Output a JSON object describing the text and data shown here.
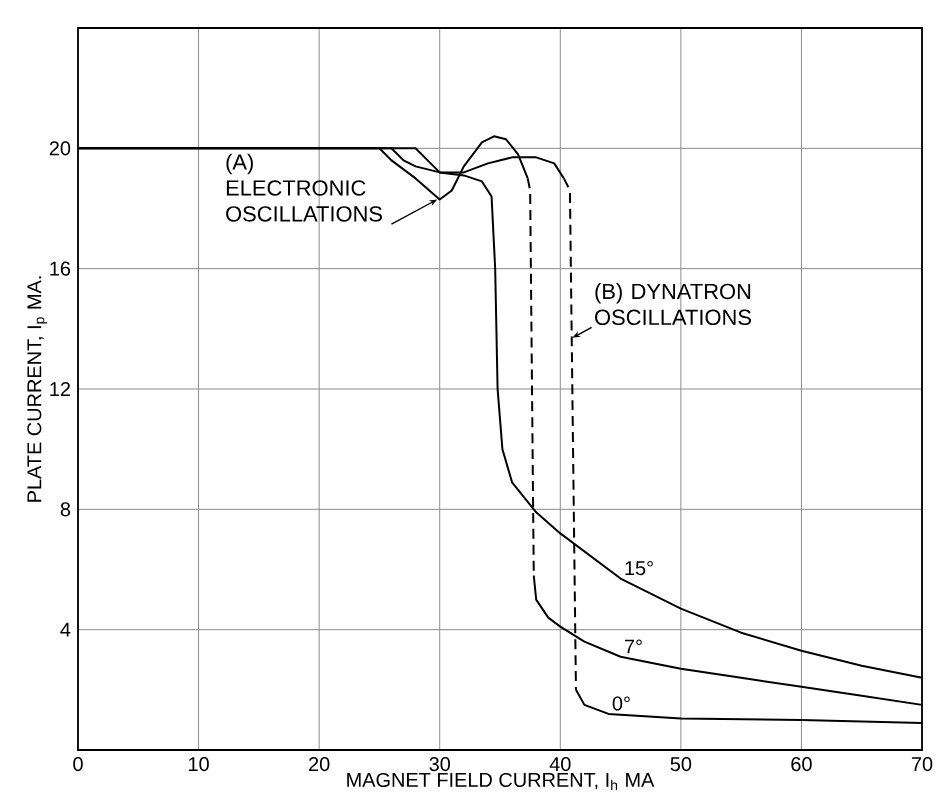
{
  "chart_data": {
    "type": "line",
    "xlabel": "MAGNET FIELD CURRENT, I$_{h}$ MA",
    "ylabel": "PLATE CURRENT, I$_{p}$ MA.",
    "xlim": [
      0,
      70
    ],
    "ylim": [
      0,
      24
    ],
    "xticks": [
      0,
      10,
      20,
      30,
      40,
      50,
      60,
      70
    ],
    "yticks": [
      {
        "value": 0,
        "label": null
      },
      4,
      8,
      12,
      16,
      20,
      {
        "value": 24,
        "label": null
      }
    ],
    "grid": true,
    "marker": "none",
    "series": [
      {
        "name": "15°",
        "color": "#000000",
        "line_style": "solid",
        "x": [
          0,
          28,
          29,
          30,
          32,
          33.5,
          34.3,
          34.6,
          34.8,
          35.2,
          36,
          38,
          40,
          45,
          50,
          55,
          60,
          65,
          70
        ],
        "values": [
          20,
          20,
          19.6,
          19.2,
          19.1,
          18.9,
          18.4,
          16,
          12,
          10,
          8.9,
          7.9,
          7.2,
          5.7,
          4.7,
          3.9,
          3.3,
          2.8,
          2.4
        ]
      },
      {
        "color": "#000000",
        "line_style": "solid",
        "x": [
          0,
          25,
          26,
          28,
          30,
          31,
          32,
          33.5,
          34.5,
          35.5,
          36.5,
          37.3
        ],
        "values": [
          20,
          20,
          19.6,
          19,
          18.3,
          18.6,
          19.4,
          20.2,
          20.4,
          20.3,
          19.8,
          19
        ]
      },
      {
        "color": "#000000",
        "line_style": "dashed",
        "x": [
          37.3,
          37.5,
          37.8
        ],
        "values": [
          19,
          18.6,
          5.8
        ]
      },
      {
        "name": "7°",
        "color": "#000000",
        "line_style": "solid",
        "x": [
          37.8,
          38,
          39,
          40,
          42,
          45,
          50,
          55,
          60,
          65,
          70
        ],
        "values": [
          5.8,
          5,
          4.4,
          4.1,
          3.6,
          3.1,
          2.7,
          2.4,
          2.1,
          1.8,
          1.5
        ]
      },
      {
        "color": "#000000",
        "line_style": "solid",
        "x": [
          0,
          26,
          27,
          28,
          30,
          32,
          34,
          36,
          38,
          39.5,
          40.3
        ],
        "values": [
          20,
          20,
          19.6,
          19.4,
          19.2,
          19.2,
          19.5,
          19.7,
          19.7,
          19.5,
          19
        ]
      },
      {
        "color": "#000000",
        "line_style": "dashed",
        "x": [
          40.3,
          40.8,
          41.3
        ],
        "values": [
          19,
          18.6,
          2
        ]
      },
      {
        "name": "0°",
        "color": "#000000",
        "line_style": "solid",
        "x": [
          41.3,
          42,
          44,
          50,
          60,
          70
        ],
        "values": [
          2,
          1.5,
          1.2,
          1.05,
          1,
          0.9
        ]
      }
    ],
    "annotations": [
      {
        "text": "(A) ELECTRONIC OSCILLATIONS",
        "x": 29.8,
        "y": 18.3
      },
      {
        "text": "(B) DYNATRON OSCILLATIONS",
        "x": 41,
        "y": 13.7
      }
    ]
  }
}
